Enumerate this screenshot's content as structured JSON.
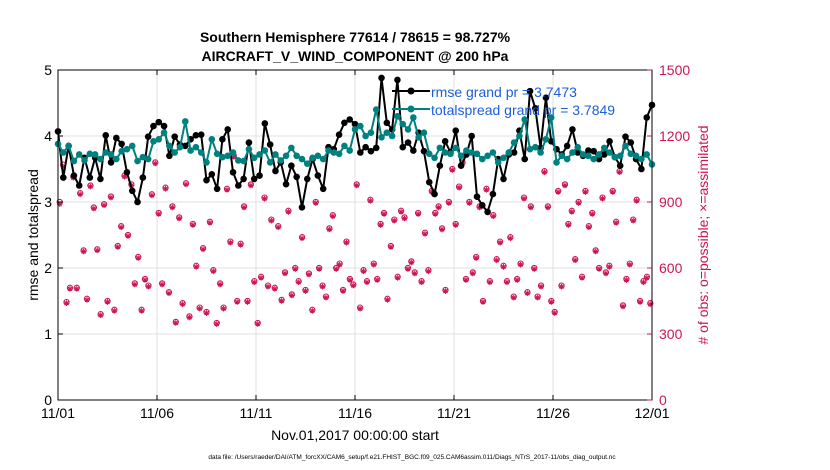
{
  "title": {
    "line1": "Southern Hemisphere 77614 / 78615 = 98.727%",
    "line2": "AIRCRAFT_V_WIND_COMPONENT @ 200 hPa"
  },
  "footer": "data file: /Users/raeder/DAI/ATM_forcXX/CAM6_setup/f.e21.FHIST_BGC.f09_025.CAM6assim.011/Diags_NTrS_2017-11/obs_diag_output.nc",
  "colors": {
    "rmse": "#000000",
    "totalspread": "#00807f",
    "obs": "#cc1456",
    "legend_text": "#1b5fd8",
    "axis": "#000000"
  },
  "chart_data": {
    "type": "line",
    "title": "Southern Hemisphere 77614 / 78615 = 98.727%",
    "subtitle": "AIRCRAFT_V_WIND_COMPONENT @ 200 hPa",
    "xlabel": "Nov.01,2017 00:00:00 start",
    "ylabel": "rmse and totalspread",
    "y2label": "# of obs: o=possible; ×=assimilated",
    "xlim": [
      0,
      30
    ],
    "ylim": [
      0,
      5
    ],
    "y2lim": [
      0,
      1500
    ],
    "grid": true,
    "x_ticks": [
      {
        "value": 0,
        "label": "11/01"
      },
      {
        "value": 5,
        "label": "11/06"
      },
      {
        "value": 10,
        "label": "11/11"
      },
      {
        "value": 15,
        "label": "11/16"
      },
      {
        "value": 20,
        "label": "11/21"
      },
      {
        "value": 25,
        "label": "11/26"
      },
      {
        "value": 30,
        "label": "12/01"
      }
    ],
    "y_ticks": [
      {
        "value": 0,
        "label": "0"
      },
      {
        "value": 1,
        "label": "1"
      },
      {
        "value": 2,
        "label": "2"
      },
      {
        "value": 3,
        "label": "3"
      },
      {
        "value": 4,
        "label": "4"
      },
      {
        "value": 5,
        "label": "5"
      }
    ],
    "y2_ticks": [
      {
        "value": 0,
        "label": "0"
      },
      {
        "value": 300,
        "label": "300"
      },
      {
        "value": 600,
        "label": "600"
      },
      {
        "value": 900,
        "label": "900"
      },
      {
        "value": 1200,
        "label": "1200"
      },
      {
        "value": 1500,
        "label": "1500"
      }
    ],
    "legend_position": "top-right",
    "series": [
      {
        "name": "rmse grand pr = 3.7473",
        "axis": "left",
        "marker": "filled-circle",
        "values": [
          4.07,
          3.37,
          3.85,
          3.4,
          3.25,
          3.67,
          3.37,
          3.67,
          3.35,
          4.01,
          3.6,
          3.97,
          3.88,
          3.45,
          3.17,
          3.0,
          3.37,
          3.99,
          4.15,
          4.21,
          4.15,
          3.7,
          3.99,
          3.87,
          3.85,
          3.95,
          4.01,
          4.02,
          3.33,
          3.42,
          3.2,
          3.95,
          4.1,
          3.45,
          3.25,
          3.35,
          3.9,
          3.35,
          3.4,
          4.19,
          3.87,
          3.47,
          3.6,
          3.27,
          3.55,
          3.38,
          2.92,
          3.35,
          3.65,
          3.4,
          3.2,
          3.83,
          3.8,
          4.02,
          4.2,
          4.25,
          4.18,
          3.75,
          3.83,
          3.77,
          3.82,
          4.88,
          4.2,
          4.1,
          4.85,
          3.83,
          3.9,
          3.78,
          4.05,
          3.77,
          3.3,
          3.12,
          3.55,
          3.92,
          3.75,
          4.08,
          3.55,
          3.72,
          4.0,
          3.08,
          2.95,
          2.85,
          3.12,
          3.65,
          3.35,
          3.72,
          3.75,
          4.08,
          3.65,
          4.68,
          4.42,
          3.82,
          4.58,
          3.92,
          3.8,
          3.72,
          3.85,
          4.1,
          3.75,
          3.7,
          3.78,
          3.77,
          3.65,
          3.72,
          3.92,
          3.68,
          3.55,
          3.99,
          3.9,
          3.65,
          3.5,
          4.28,
          4.47
        ]
      },
      {
        "name": "totalspread grand pr = 3.7849",
        "axis": "left",
        "marker": "filled-circle",
        "values": [
          3.88,
          3.75,
          3.85,
          3.62,
          3.72,
          3.63,
          3.73,
          3.72,
          3.65,
          3.75,
          3.72,
          3.65,
          3.77,
          3.8,
          3.85,
          3.62,
          3.68,
          3.65,
          3.92,
          3.95,
          4.05,
          3.85,
          3.75,
          3.83,
          4.22,
          3.78,
          3.83,
          3.75,
          3.6,
          3.95,
          3.73,
          3.68,
          3.7,
          3.75,
          3.63,
          3.62,
          3.8,
          3.67,
          3.72,
          3.78,
          3.6,
          3.72,
          3.63,
          3.7,
          3.82,
          3.7,
          3.65,
          3.58,
          3.67,
          3.7,
          3.65,
          3.78,
          3.75,
          3.73,
          3.85,
          3.78,
          4.1,
          4.15,
          4.0,
          4.05,
          4.4,
          3.98,
          4.05,
          4.0,
          4.3,
          4.18,
          4.1,
          4.28,
          3.98,
          4.05,
          3.73,
          3.67,
          3.82,
          3.75,
          3.73,
          3.82,
          3.7,
          3.78,
          3.75,
          3.73,
          3.65,
          3.7,
          3.75,
          3.6,
          3.67,
          3.75,
          3.9,
          4.0,
          4.25,
          3.8,
          3.83,
          3.75,
          3.95,
          4.28,
          3.6,
          3.7,
          3.65,
          3.75,
          3.83,
          3.72,
          3.7,
          3.65,
          3.72,
          3.82,
          3.75,
          3.68,
          3.7,
          3.85,
          3.73,
          3.7,
          3.65,
          3.72,
          3.57
        ]
      },
      {
        "name": "# of obs possible",
        "axis": "right",
        "marker": "open-circle",
        "values": [
          900,
          1070,
          445,
          510,
          1015,
          510,
          940,
          680,
          460,
          975,
          875,
          685,
          390,
          890,
          450,
          925,
          410,
          700,
          790,
          1020,
          750,
          980,
          530,
          650,
          410,
          550,
          520,
          935,
          1080,
          850,
          530,
          965,
          490,
          880,
          355,
          830,
          440,
          985,
          380,
          800,
          610,
          420,
          690,
          400,
          810,
          590,
          350,
          530,
          420,
          960,
          720,
          1110,
          450,
          710,
          880,
          450,
          980,
          540,
          350,
          560,
          920,
          520,
          820,
          510,
          790,
          455,
          580,
          860,
          480,
          600,
          540,
          740,
          500,
          575,
          410,
          900,
          600,
          520,
          470,
          780,
          840,
          600,
          620,
          500,
          720,
          550,
          525,
          980,
          420,
          590,
          540,
          910,
          620,
          550,
          800,
          850,
          460,
          700,
          820,
          560,
          860,
          830,
          600,
          630,
          580,
          850,
          540,
          760,
          590,
          950,
          850,
          880,
          780,
          500,
          900,
          1050,
          800,
          970,
          1080,
          550,
          900,
          580,
          650,
          880,
          450,
          960,
          540,
          840,
          640,
          720,
          610,
          540,
          740,
          470,
          550,
          620,
          920,
          490,
          880,
          600,
          470,
          520,
          1040,
          880,
          450,
          400,
          950,
          520,
          980,
          800,
          860,
          640,
          900,
          560,
          950,
          790,
          850,
          680,
          600,
          920,
          580,
          610,
          950,
          810,
          1040,
          430,
          550,
          620,
          820,
          910,
          450,
          540,
          560,
          440
        ]
      },
      {
        "name": "# of obs assimilated",
        "axis": "right",
        "marker": "asterisk",
        "values": [
          890,
          1060,
          440,
          505,
          1010,
          505,
          935,
          675,
          455,
          970,
          870,
          680,
          385,
          885,
          445,
          920,
          405,
          695,
          785,
          1015,
          745,
          975,
          525,
          645,
          405,
          545,
          515,
          930,
          1075,
          845,
          525,
          960,
          485,
          875,
          350,
          825,
          435,
          980,
          375,
          795,
          605,
          415,
          685,
          395,
          805,
          585,
          345,
          525,
          415,
          955,
          715,
          1105,
          445,
          705,
          875,
          445,
          975,
          535,
          345,
          555,
          915,
          515,
          815,
          505,
          785,
          450,
          575,
          855,
          475,
          595,
          535,
          735,
          495,
          570,
          405,
          895,
          595,
          515,
          465,
          775,
          835,
          595,
          615,
          495,
          715,
          545,
          520,
          975,
          415,
          585,
          535,
          905,
          615,
          545,
          795,
          845,
          455,
          695,
          815,
          555,
          855,
          825,
          595,
          625,
          575,
          845,
          535,
          755,
          585,
          945,
          845,
          875,
          775,
          495,
          895,
          1045,
          795,
          965,
          1075,
          545,
          895,
          575,
          645,
          875,
          445,
          955,
          535,
          835,
          635,
          715,
          605,
          535,
          735,
          465,
          545,
          615,
          915,
          485,
          875,
          595,
          465,
          515,
          1035,
          875,
          445,
          395,
          945,
          515,
          975,
          795,
          855,
          635,
          895,
          555,
          945,
          785,
          845,
          675,
          595,
          915,
          575,
          605,
          945,
          805,
          1035,
          425,
          545,
          615,
          815,
          905,
          445,
          535,
          555,
          435
        ]
      }
    ]
  }
}
